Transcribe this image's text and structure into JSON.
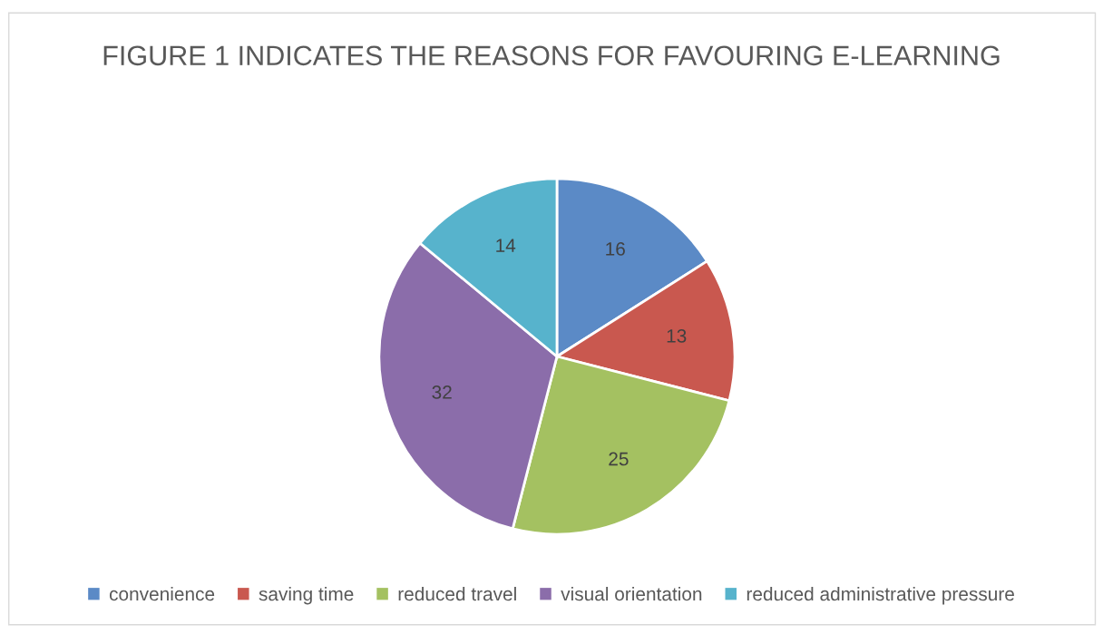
{
  "chart_data": {
    "type": "pie",
    "title": "FIGURE 1 INDICATES THE REASONS FOR FAVOURING E-LEARNING",
    "categories": [
      "convenience",
      "saving time",
      "reduced travel",
      "visual orientation",
      "reduced administrative pressure"
    ],
    "values": [
      16,
      13,
      25,
      32,
      14
    ],
    "colors": [
      "#5b8ac6",
      "#c9584f",
      "#a4c161",
      "#8b6daa",
      "#57b3cc"
    ],
    "data_labels": true,
    "legend": "bottom"
  }
}
